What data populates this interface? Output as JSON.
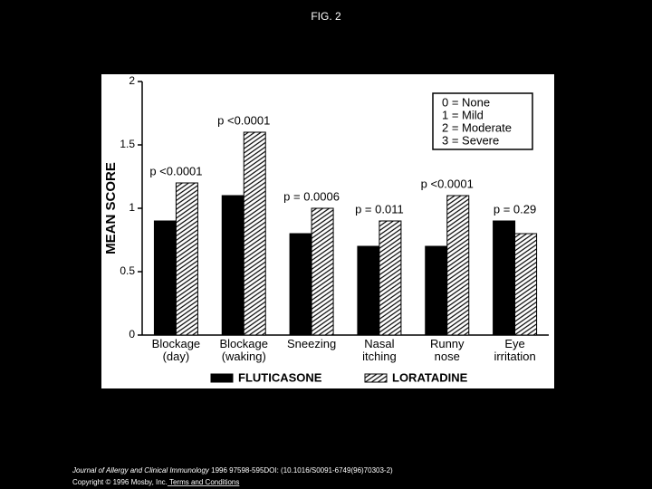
{
  "page_title": "FIG. 2",
  "chart_data": {
    "type": "bar",
    "y_label": "MEAN SCORE",
    "categories": [
      [
        "Blockage",
        "(day)"
      ],
      [
        "Blockage",
        "(waking)"
      ],
      [
        "Sneezing"
      ],
      [
        "Nasal",
        "itching"
      ],
      [
        "Runny",
        "nose"
      ],
      [
        "Eye",
        "irritation"
      ]
    ],
    "series": [
      {
        "name": "FLUTICASONE",
        "color": "#000000",
        "values": [
          0.9,
          1.1,
          0.8,
          0.7,
          0.7,
          0.9
        ]
      },
      {
        "name": "LORATADINE",
        "color": "hatched",
        "values": [
          1.2,
          1.6,
          1.0,
          0.9,
          1.1,
          0.8
        ]
      }
    ],
    "annotations": [
      "p <0.0001",
      "p <0.0001",
      "p = 0.0006",
      "p = 0.011",
      "p <0.0001",
      "p = 0.29"
    ],
    "scale_legend": [
      "0 = None",
      "1 = Mild",
      "2 = Moderate",
      "3 = Severe"
    ],
    "ylim": [
      0,
      2
    ],
    "yticks": [
      0,
      0.5,
      1,
      1.5,
      2
    ]
  },
  "footer": {
    "journal": "Journal of Allergy and Clinical Immunology",
    "citation": " 1996 97598-595DOI: (10.1016/S0091-6749(96)70303-2)",
    "copyright": "Copyright © 1996 Mosby, Inc.",
    "link": " Terms and Conditions"
  }
}
